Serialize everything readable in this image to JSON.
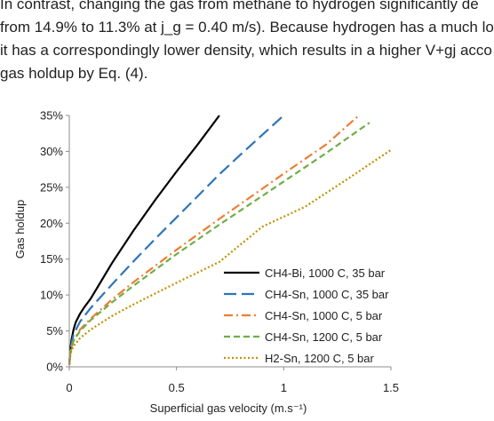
{
  "excerpt": {
    "lines": [
      "In contrast, changing the gas from methane to hydrogen significantly de",
      "from 14.9% to 11.3% at j_g = 0.40 m/s). Because hydrogen has a much lo",
      "it has a correspondingly lower density, which results in a higher V+gj acco",
      "gas holdup by Eq. (4)."
    ]
  },
  "chart_data": {
    "type": "line",
    "title": "",
    "xlabel": "Superficial gas velocity (m.s⁻¹)",
    "ylabel": "Gas holdup",
    "xlim": [
      0,
      1.5
    ],
    "ylim": [
      0,
      0.35
    ],
    "x_ticks": [
      0,
      0.5,
      1,
      1.5
    ],
    "x_tick_labels": [
      "0",
      "0.5",
      "1",
      "1.5"
    ],
    "y_ticks": [
      0,
      0.05,
      0.1,
      0.15,
      0.2,
      0.25,
      0.3,
      0.35
    ],
    "y_tick_labels": [
      "0%",
      "5%",
      "10%",
      "15%",
      "20%",
      "25%",
      "30%",
      "35%"
    ],
    "grid": false,
    "legend_position": "bottom-right",
    "series": [
      {
        "name": "CH4-Bi, 1000 C, 35 bar",
        "color": "#000000",
        "dash": "solid",
        "x": [
          0,
          0.005,
          0.01,
          0.02,
          0.03,
          0.05,
          0.07,
          0.1,
          0.15,
          0.2,
          0.3,
          0.4,
          0.5,
          0.6,
          0.7
        ],
        "y": [
          0.003,
          0.025,
          0.037,
          0.052,
          0.062,
          0.074,
          0.083,
          0.095,
          0.12,
          0.145,
          0.19,
          0.232,
          0.272,
          0.31,
          0.35
        ]
      },
      {
        "name": "CH4-Sn, 1000 C, 35 bar",
        "color": "#2E75B6",
        "dash": "long-dash",
        "x": [
          0,
          0.005,
          0.01,
          0.02,
          0.05,
          0.1,
          0.2,
          0.3,
          0.4,
          0.5,
          0.6,
          0.7,
          0.8,
          0.9,
          1.0
        ],
        "y": [
          0.003,
          0.022,
          0.032,
          0.045,
          0.063,
          0.082,
          0.115,
          0.147,
          0.178,
          0.208,
          0.238,
          0.268,
          0.296,
          0.323,
          0.35
        ]
      },
      {
        "name": "CH4-Sn, 1000 C, 5 bar",
        "color": "#ED7D31",
        "dash": "dash-dot",
        "x": [
          0,
          0.005,
          0.01,
          0.02,
          0.05,
          0.1,
          0.2,
          0.3,
          0.5,
          0.7,
          0.9,
          1.0,
          1.2,
          1.35
        ],
        "y": [
          0.003,
          0.02,
          0.027,
          0.037,
          0.052,
          0.067,
          0.094,
          0.118,
          0.163,
          0.206,
          0.248,
          0.269,
          0.31,
          0.35
        ]
      },
      {
        "name": "CH4-Sn, 1200 C, 5 bar",
        "color": "#70AD47",
        "dash": "dash",
        "x": [
          0,
          0.005,
          0.01,
          0.02,
          0.05,
          0.1,
          0.2,
          0.3,
          0.5,
          0.7,
          0.9,
          1.0,
          1.2,
          1.4
        ],
        "y": [
          0.003,
          0.019,
          0.026,
          0.036,
          0.05,
          0.065,
          0.09,
          0.113,
          0.157,
          0.198,
          0.238,
          0.258,
          0.298,
          0.34
        ]
      },
      {
        "name": "H2-Sn, 1200 C, 5 bar",
        "color": "#BF9000",
        "dash": "dotted",
        "x": [
          0,
          0.005,
          0.01,
          0.02,
          0.05,
          0.1,
          0.2,
          0.3,
          0.5,
          0.7,
          0.9,
          1.1,
          1.3,
          1.5
        ],
        "y": [
          0.003,
          0.016,
          0.022,
          0.029,
          0.04,
          0.052,
          0.071,
          0.087,
          0.117,
          0.146,
          0.195,
          0.223,
          0.262,
          0.302
        ]
      }
    ]
  }
}
